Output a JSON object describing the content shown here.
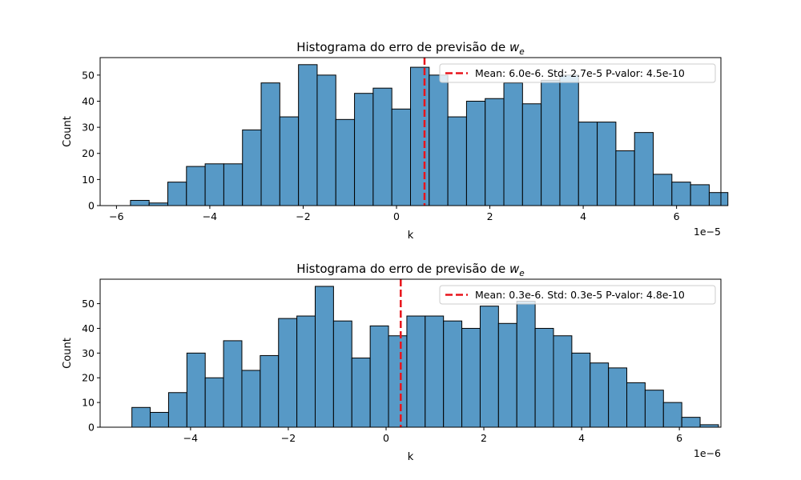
{
  "chart_data": [
    {
      "type": "bar",
      "title_text": "Histograma do erro de previsão de ",
      "title_var": "w",
      "title_sub": "e",
      "xlabel": "k",
      "ylabel": "Count",
      "x_multiplier": "1e−5",
      "xlim": [
        -6.35,
        6.95
      ],
      "ylim": [
        0,
        56.7
      ],
      "xticks": [
        -6,
        -4,
        -2,
        0,
        2,
        4,
        6
      ],
      "yticks": [
        0,
        10,
        20,
        30,
        40,
        50
      ],
      "bin_start": -5.7,
      "bin_width": 0.4,
      "counts": [
        2,
        1,
        9,
        15,
        16,
        16,
        29,
        47,
        34,
        54,
        50,
        33,
        43,
        45,
        37,
        53,
        50,
        34,
        40,
        41,
        47,
        39,
        48,
        50,
        32,
        32,
        21,
        28,
        12,
        9,
        8,
        5
      ],
      "bar_color": "#5799c6",
      "mean_line_x": 0.6,
      "mean_line_color": "#e8141b",
      "legend_label": "Mean: 6.0e-6. Std: 2.7e-5 P-valor:  4.5e-10",
      "legend_position": "upper right"
    },
    {
      "type": "bar",
      "title_text": "Histograma do erro de previsão de ",
      "title_var": "w",
      "title_sub": "e",
      "xlabel": "k",
      "ylabel": "Count",
      "x_multiplier": "1e−6",
      "xlim": [
        -5.85,
        6.85
      ],
      "ylim": [
        0,
        59.9
      ],
      "xticks": [
        -4,
        -2,
        0,
        2,
        4,
        6
      ],
      "yticks": [
        0,
        10,
        20,
        30,
        40,
        50
      ],
      "bin_start": -5.2,
      "bin_width": 0.375,
      "counts": [
        8,
        6,
        14,
        30,
        20,
        35,
        23,
        29,
        44,
        45,
        57,
        43,
        28,
        41,
        37,
        45,
        45,
        43,
        40,
        49,
        42,
        51,
        40,
        37,
        30,
        26,
        24,
        18,
        15,
        10,
        4,
        1
      ],
      "bar_color": "#5799c6",
      "mean_line_x": 0.3,
      "mean_line_color": "#e8141b",
      "legend_label": "Mean: 0.3e-6. Std: 0.3e-5 P-valor:  4.8e-10",
      "legend_position": "upper right"
    }
  ]
}
